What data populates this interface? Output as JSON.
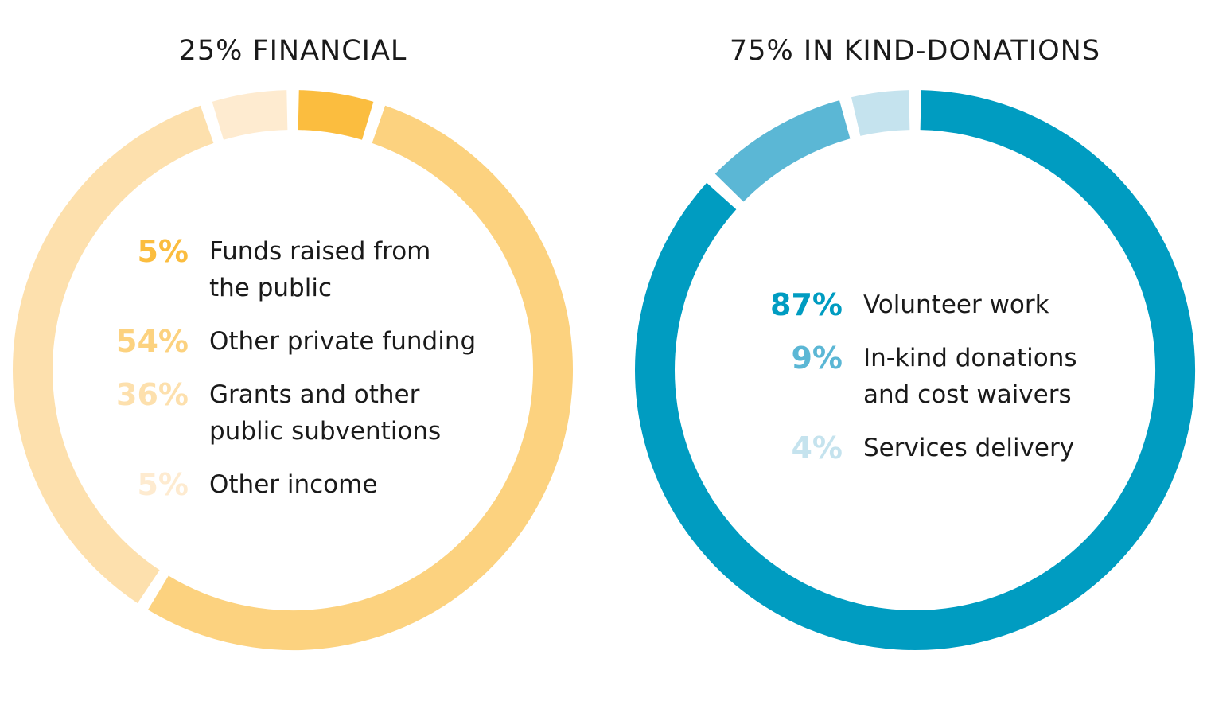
{
  "chart_data": [
    {
      "type": "pie",
      "donut": true,
      "title": "25% FINANCIAL",
      "categories": [
        "Funds raised from the public",
        "Other private funding",
        "Grants and other public subventions",
        "Other income"
      ],
      "values": [
        5,
        54,
        36,
        5
      ],
      "value_labels": [
        "5%",
        "54%",
        "36%",
        "5%"
      ],
      "colors": [
        "#fbbd3f",
        "#fcd27f",
        "#fde0ad",
        "#feebd0"
      ]
    },
    {
      "type": "pie",
      "donut": true,
      "title": "75% IN KIND-DONATIONS",
      "categories": [
        "Volunteer work",
        "In-kind donations and cost waivers",
        "Services delivery"
      ],
      "values": [
        87,
        9,
        4
      ],
      "value_labels": [
        "87%",
        "9%",
        "4%"
      ],
      "colors": [
        "#009cc1",
        "#5bb7d5",
        "#c5e3ee"
      ]
    }
  ]
}
